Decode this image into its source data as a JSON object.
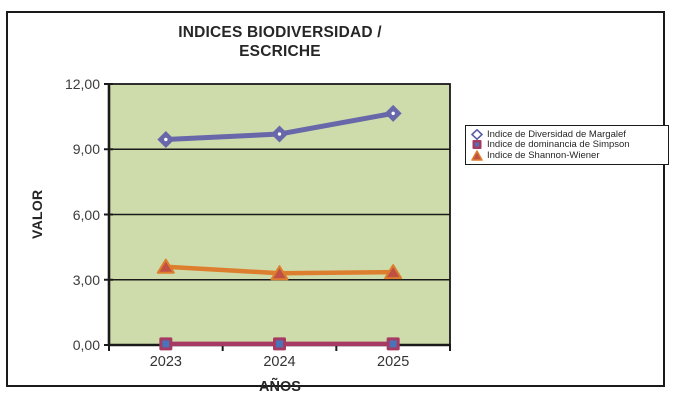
{
  "chart_data": {
    "type": "line",
    "title": "INDICES BIODIVERSIDAD / ESCRICHE",
    "title_lines": [
      "INDICES BIODIVERSIDAD /",
      "ESCRICHE"
    ],
    "xlabel": "AÑOS",
    "ylabel": "VALOR",
    "categories": [
      "2023",
      "2024",
      "2025"
    ],
    "ylim": [
      0,
      12
    ],
    "ytick_step": 3,
    "ytick_labels": [
      "0,00",
      "3,00",
      "6,00",
      "9,00",
      "12,00"
    ],
    "grid": "horizontal",
    "legend_position": "right",
    "colors": {
      "plot_bg": "#cedcab",
      "axis": "#1a1a1a",
      "gridline": "#1a1a1a",
      "text": "#262626"
    },
    "series": [
      {
        "name": "Indice de Diversidad de Margalef",
        "marker": "diamond",
        "line_color": "#6767aa",
        "marker_fill": "#ffffff",
        "marker_stroke": "#5c5ca4",
        "values": [
          9.45,
          9.7,
          10.65
        ]
      },
      {
        "name": "Indice de dominancia de Simpson",
        "marker": "square",
        "line_color": "#a63a62",
        "marker_fill": "#4a74ba",
        "marker_stroke": "#a63a62",
        "values": [
          0.05,
          0.05,
          0.05
        ]
      },
      {
        "name": "Indice de Shannon-Wiener",
        "marker": "triangle",
        "line_color": "#dd7e2e",
        "marker_fill": "#c05044",
        "marker_stroke": "#dd7e2e",
        "values": [
          3.6,
          3.3,
          3.35
        ]
      }
    ]
  }
}
